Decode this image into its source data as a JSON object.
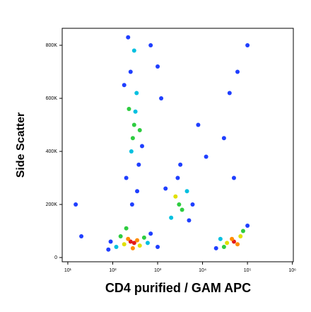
{
  "chart_data": {
    "type": "scatter",
    "x_label": "CD4 purified / GAM APC",
    "y_label": "Side Scatter",
    "log_x": true,
    "xlim": [
      7.5,
      1050000
    ],
    "ylim": [
      -16000,
      864000
    ],
    "xticks": [
      {
        "value": 10,
        "label": "10¹"
      },
      {
        "value": 100,
        "label": "10²"
      },
      {
        "value": 1000,
        "label": "10³"
      },
      {
        "value": 10000,
        "label": "10⁴"
      },
      {
        "value": 100000,
        "label": "10⁵"
      },
      {
        "value": 1000000,
        "label": "10⁶"
      }
    ],
    "yticks": [
      0,
      {
        "value": 200000,
        "label": "200K"
      },
      {
        "value": 400000,
        "label": "400K"
      },
      {
        "value": 600000,
        "label": "600K"
      },
      {
        "value": 800000,
        "label": "800K"
      }
    ],
    "x": [
      250,
      300,
      220,
      350,
      180,
      400,
      150,
      500,
      120,
      600,
      90,
      700,
      200,
      280,
      80,
      1000,
      300,
      280,
      320,
      260,
      340,
      250,
      300,
      220,
      380,
      200,
      400,
      230,
      350,
      180,
      450,
      270,
      3000,
      2500,
      3500,
      2000,
      4500,
      2800,
      5000,
      1500,
      3200,
      6000,
      50000,
      45000,
      60000,
      35000,
      70000,
      30000,
      80000,
      25000,
      100000,
      20000,
      700,
      1000,
      40000,
      60000,
      100000,
      30000,
      8000,
      15,
      20,
      12000,
      1200,
      50000
    ],
    "y": [
      60000,
      55000,
      70000,
      65000,
      50000,
      45000,
      80000,
      75000,
      40000,
      55000,
      60000,
      90000,
      110000,
      35000,
      30000,
      40000,
      500000,
      450000,
      550000,
      400000,
      620000,
      700000,
      780000,
      830000,
      350000,
      300000,
      480000,
      560000,
      250000,
      650000,
      420000,
      200000,
      200000,
      230000,
      180000,
      150000,
      250000,
      300000,
      140000,
      260000,
      350000,
      200000,
      60000,
      70000,
      50000,
      55000,
      80000,
      40000,
      100000,
      70000,
      120000,
      35000,
      800000,
      720000,
      620000,
      700000,
      800000,
      450000,
      500000,
      200000,
      80000,
      380000,
      600000,
      300000
    ],
    "colors": [
      "#e31a1c",
      "#e31a1c",
      "#ff8c00",
      "#ff8c00",
      "#e0e000",
      "#e0e000",
      "#2ecc40",
      "#2ecc40",
      "#00c0e0",
      "#00c0e0",
      "#1f3fff",
      "#1f3fff",
      "#2ecc40",
      "#ff8c00",
      "#1f3fff",
      "#1f3fff",
      "#2ecc40",
      "#2ecc40",
      "#00c0e0",
      "#00c0e0",
      "#00c0e0",
      "#1f3fff",
      "#00c0e0",
      "#1f3fff",
      "#1f3fff",
      "#1f3fff",
      "#2ecc40",
      "#2ecc40",
      "#1f3fff",
      "#1f3fff",
      "#1f3fff",
      "#1f3fff",
      "#2ecc40",
      "#e0e000",
      "#2ecc40",
      "#00c0e0",
      "#00c0e0",
      "#1f3fff",
      "#1f3fff",
      "#1f3fff",
      "#1f3fff",
      "#1f3fff",
      "#e31a1c",
      "#ff8c00",
      "#ff8c00",
      "#e0e000",
      "#e0e000",
      "#2ecc40",
      "#2ecc40",
      "#00c0e0",
      "#1f3fff",
      "#1f3fff",
      "#1f3fff",
      "#1f3fff",
      "#1f3fff",
      "#1f3fff",
      "#1f3fff",
      "#1f3fff",
      "#1f3fff",
      "#1f3fff",
      "#1f3fff",
      "#1f3fff",
      "#1f3fff",
      "#1f3fff"
    ]
  }
}
